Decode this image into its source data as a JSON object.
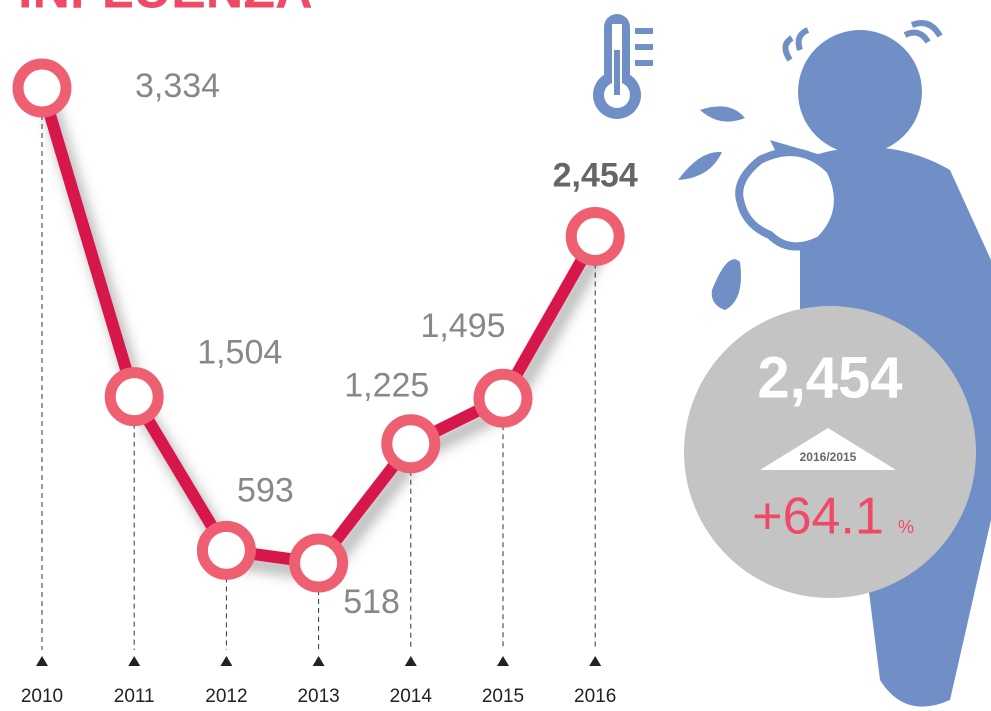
{
  "chart_data": {
    "type": "line",
    "title": "INFLUENZA",
    "categories": [
      "2010",
      "2011",
      "2012",
      "2013",
      "2014",
      "2015",
      "2016"
    ],
    "values": [
      3334,
      1504,
      593,
      518,
      1225,
      1495,
      2454
    ],
    "value_labels": [
      "3,334",
      "1,504",
      "593",
      "518",
      "1,225",
      "1,495",
      "2,454"
    ],
    "color": "#d7154a",
    "marker_color": "#ee5f72",
    "callout": {
      "value": "2,454",
      "period": "2016/2015",
      "change": "+64.1",
      "unit": "%"
    }
  }
}
